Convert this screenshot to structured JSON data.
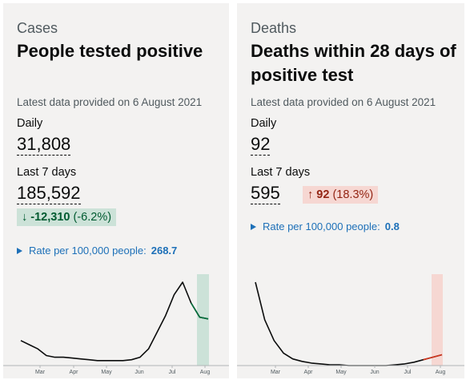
{
  "cases": {
    "caption": "Cases",
    "title": "People tested positive",
    "latest": "Latest data provided on 6 August 2021",
    "daily_label": "Daily",
    "daily_value": "31,808",
    "weekly_label": "Last 7 days",
    "weekly_value": "185,592",
    "change_arrow": "↓",
    "change_value": "-12,310",
    "change_pct": "(-6.2%)",
    "rate_label": "Rate per 100,000 people:",
    "rate_value": "268.7"
  },
  "deaths": {
    "caption": "Deaths",
    "title": "Deaths within 28 days of positive test",
    "latest": "Latest data provided on 6 August 2021",
    "daily_label": "Daily",
    "daily_value": "92",
    "weekly_label": "Last 7 days",
    "weekly_value": "595",
    "change_arrow": "↑",
    "change_value": "92",
    "change_pct": "(18.3%)",
    "rate_label": "Rate per 100,000 people:",
    "rate_value": "0.8"
  },
  "chart_data": [
    {
      "type": "line",
      "x": [
        "Mar",
        "Apr",
        "May",
        "Jun",
        "Jul",
        "Aug"
      ],
      "tick_labels": [
        "Mar",
        "Apr",
        "May",
        "Jun",
        "Jul",
        "Aug"
      ],
      "series_color": "#0b0c0c",
      "highlight_color": "#cce2d8",
      "highlight_line_color": "#00703c",
      "shape_points": [
        0.3,
        0.25,
        0.2,
        0.12,
        0.1,
        0.1,
        0.09,
        0.08,
        0.07,
        0.06,
        0.06,
        0.06,
        0.06,
        0.07,
        0.1,
        0.2,
        0.4,
        0.6,
        0.85,
        1.0,
        0.75,
        0.58,
        0.56
      ]
    },
    {
      "type": "line",
      "x": [
        "Mar",
        "Apr",
        "May",
        "Jun",
        "Jul",
        "Aug"
      ],
      "tick_labels": [
        "Mar",
        "Apr",
        "May",
        "Jun",
        "Jul",
        "Aug"
      ],
      "series_color": "#0b0c0c",
      "highlight_color": "#f6d7d2",
      "highlight_line_color": "#d4351c",
      "shape_points": [
        1.0,
        0.55,
        0.3,
        0.15,
        0.08,
        0.05,
        0.03,
        0.02,
        0.01,
        0.01,
        0.0,
        0.0,
        0.0,
        0.0,
        0.0,
        0.01,
        0.02,
        0.04,
        0.07,
        0.1,
        0.13
      ]
    }
  ]
}
